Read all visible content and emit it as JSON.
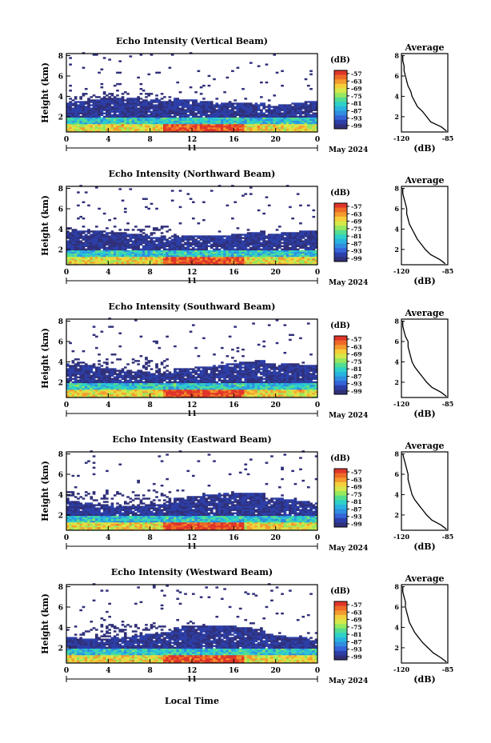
{
  "figure": {
    "xlabel": "Local Time",
    "date_label": "May 2024",
    "day_label": "11",
    "unit_label": "(dB)",
    "colorbar_ticks": [
      "-57",
      "-63",
      "-69",
      "-75",
      "-81",
      "-87",
      "-93",
      "-99"
    ],
    "colorscale": [
      "#30307a",
      "#2c3fa8",
      "#3464d8",
      "#2f8ee0",
      "#29b3e0",
      "#2ed1c8",
      "#53dd92",
      "#96e85e",
      "#d6e84a",
      "#f5cf3a",
      "#f59a2e",
      "#ee6a26",
      "#e0352a"
    ]
  },
  "chart_data": [
    {
      "type": "heatmap",
      "title": "Echo Intensity (Vertical Beam)",
      "ylabel": "Height (km)",
      "x_ticks": [
        "0",
        "4",
        "8",
        "12",
        "16",
        "20",
        "0"
      ],
      "y_ticks": [
        "2",
        "4",
        "6",
        "8"
      ],
      "xlim": [
        0,
        24
      ],
      "ylim": [
        0.5,
        8.2
      ],
      "clim": [
        -99,
        -57
      ],
      "profile": {
        "title": "Average",
        "xlabel": "(dB)",
        "xlim": [
          -120,
          -85
        ],
        "x_ticks": [
          "-120",
          "-85"
        ],
        "y_ticks": [
          "2",
          "4",
          "6",
          "8"
        ],
        "height": [
          0.6,
          1.0,
          1.5,
          2.0,
          2.5,
          3.0,
          3.5,
          4.0,
          4.5,
          5.0,
          5.5,
          6.0,
          6.5,
          7.0,
          7.5,
          8.0
        ],
        "value": [
          -86,
          -90,
          -98,
          -101,
          -104,
          -108,
          -110,
          -112,
          -113,
          -115,
          -116,
          -117,
          -118,
          -118,
          -119,
          -119
        ]
      }
    },
    {
      "type": "heatmap",
      "title": "Echo Intensity (Northward Beam)",
      "ylabel": "Height (km)",
      "x_ticks": [
        "0",
        "4",
        "8",
        "12",
        "16",
        "20",
        "0"
      ],
      "y_ticks": [
        "2",
        "4",
        "6",
        "8"
      ],
      "xlim": [
        0,
        24
      ],
      "ylim": [
        0.5,
        8.2
      ],
      "clim": [
        -99,
        -57
      ],
      "profile": {
        "title": "Average",
        "xlabel": "(dB)",
        "xlim": [
          -120,
          -85
        ],
        "x_ticks": [
          "-120",
          "-85"
        ],
        "y_ticks": [
          "2",
          "4",
          "6",
          "8"
        ],
        "height": [
          0.6,
          1.0,
          1.5,
          2.0,
          2.5,
          3.0,
          3.5,
          4.0,
          4.5,
          5.0,
          5.5,
          6.0,
          6.5,
          7.0,
          7.5,
          8.0
        ],
        "value": [
          -87,
          -91,
          -98,
          -102,
          -105,
          -108,
          -110,
          -112,
          -114,
          -115,
          -116,
          -116,
          -117,
          -118,
          -119,
          -119
        ]
      }
    },
    {
      "type": "heatmap",
      "title": "Echo Intensity (Southward Beam)",
      "ylabel": "Height (km)",
      "x_ticks": [
        "0",
        "4",
        "8",
        "12",
        "16",
        "20",
        "0"
      ],
      "y_ticks": [
        "2",
        "4",
        "6",
        "8"
      ],
      "xlim": [
        0,
        24
      ],
      "ylim": [
        0.5,
        8.2
      ],
      "clim": [
        -99,
        -57
      ],
      "profile": {
        "title": "Average",
        "xlabel": "(dB)",
        "xlim": [
          -120,
          -85
        ],
        "x_ticks": [
          "-120",
          "-85"
        ],
        "y_ticks": [
          "2",
          "4",
          "6",
          "8"
        ],
        "height": [
          0.6,
          1.0,
          1.5,
          2.0,
          2.5,
          3.0,
          3.5,
          4.0,
          4.5,
          5.0,
          5.5,
          6.0,
          6.5,
          7.0,
          7.5,
          8.0
        ],
        "value": [
          -86,
          -90,
          -97,
          -101,
          -104,
          -107,
          -110,
          -112,
          -113,
          -114,
          -115,
          -115,
          -117,
          -118,
          -119,
          -119
        ]
      }
    },
    {
      "type": "heatmap",
      "title": "Echo Intensity (Eastward Beam)",
      "ylabel": "Height (km)",
      "x_ticks": [
        "0",
        "4",
        "8",
        "12",
        "16",
        "20",
        "0"
      ],
      "y_ticks": [
        "2",
        "4",
        "6",
        "8"
      ],
      "xlim": [
        0,
        24
      ],
      "ylim": [
        0.5,
        8.2
      ],
      "clim": [
        -99,
        -57
      ],
      "profile": {
        "title": "Average",
        "xlabel": "(dB)",
        "xlim": [
          -120,
          -85
        ],
        "x_ticks": [
          "-120",
          "-85"
        ],
        "y_ticks": [
          "2",
          "4",
          "6",
          "8"
        ],
        "height": [
          0.6,
          1.0,
          1.5,
          2.0,
          2.5,
          3.0,
          3.5,
          4.0,
          4.5,
          5.0,
          5.5,
          6.0,
          6.5,
          7.0,
          7.5,
          8.0
        ],
        "value": [
          -86,
          -90,
          -97,
          -101,
          -104,
          -107,
          -110,
          -112,
          -113,
          -114,
          -115,
          -115,
          -116,
          -117,
          -118,
          -119
        ]
      }
    },
    {
      "type": "heatmap",
      "title": "Echo Intensity (Westward Beam)",
      "ylabel": "Height (km)",
      "x_ticks": [
        "0",
        "4",
        "8",
        "12",
        "16",
        "20",
        "0"
      ],
      "y_ticks": [
        "2",
        "4",
        "6",
        "8"
      ],
      "xlim": [
        0,
        24
      ],
      "ylim": [
        0.5,
        8.2
      ],
      "clim": [
        -99,
        -57
      ],
      "profile": {
        "title": "Average",
        "xlabel": "(dB)",
        "xlim": [
          -120,
          -85
        ],
        "x_ticks": [
          "-120",
          "-85"
        ],
        "y_ticks": [
          "2",
          "4",
          "6",
          "8"
        ],
        "height": [
          0.6,
          1.0,
          1.5,
          2.0,
          2.5,
          3.0,
          3.5,
          4.0,
          4.5,
          5.0,
          5.5,
          6.0,
          6.5,
          7.0,
          7.5,
          8.0
        ],
        "value": [
          -86,
          -90,
          -96,
          -100,
          -104,
          -107,
          -110,
          -112,
          -114,
          -115,
          -116,
          -117,
          -117,
          -118,
          -119,
          -119
        ]
      }
    }
  ]
}
